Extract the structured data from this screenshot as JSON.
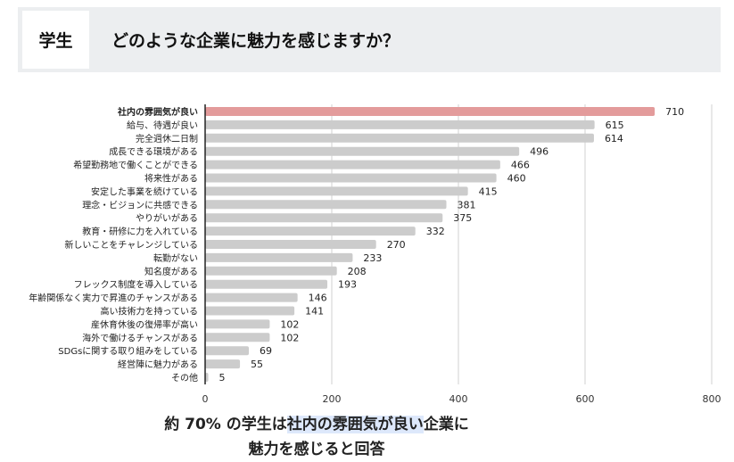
{
  "header": {
    "tag": "学生",
    "title": "どのような企業に魅力を感じますか？"
  },
  "chart_data": {
    "type": "bar",
    "orientation": "horizontal",
    "categories": [
      "社内の雰囲気が良い",
      "給与、待遇が良い",
      "完全週休二日制",
      "成長できる環境がある",
      "希望勤務地で働くことができる",
      "将来性がある",
      "安定した事業を続けている",
      "理念・ビジョンに共感できる",
      "やりがいがある",
      "教育・研修に力を入れている",
      "新しいことをチャレンジしている",
      "転勤がない",
      "知名度がある",
      "フレックス制度を導入している",
      "年齢関係なく実力で昇進のチャンスがある",
      "高い技術力を持っている",
      "産休育休後の復帰率が高い",
      "海外で働けるチャンスがある",
      "SDGsに関する取り組みをしている",
      "経営陣に魅力がある",
      "その他"
    ],
    "values": [
      710,
      615,
      614,
      496,
      466,
      460,
      415,
      381,
      375,
      332,
      270,
      233,
      208,
      193,
      146,
      141,
      102,
      102,
      69,
      55,
      5
    ],
    "xlim": [
      0,
      800
    ],
    "xticks": [
      0,
      200,
      400,
      600,
      800
    ],
    "grid": true,
    "highlight_index": 0,
    "colors": {
      "highlight": "#e39b9b",
      "default": "#cccccc"
    }
  },
  "caption": {
    "line1_pre": "約 70% の学生は",
    "line1_highlight": "社内の雰囲気が良い",
    "line1_post": "企業に",
    "line2": "魅力を感じると回答"
  }
}
